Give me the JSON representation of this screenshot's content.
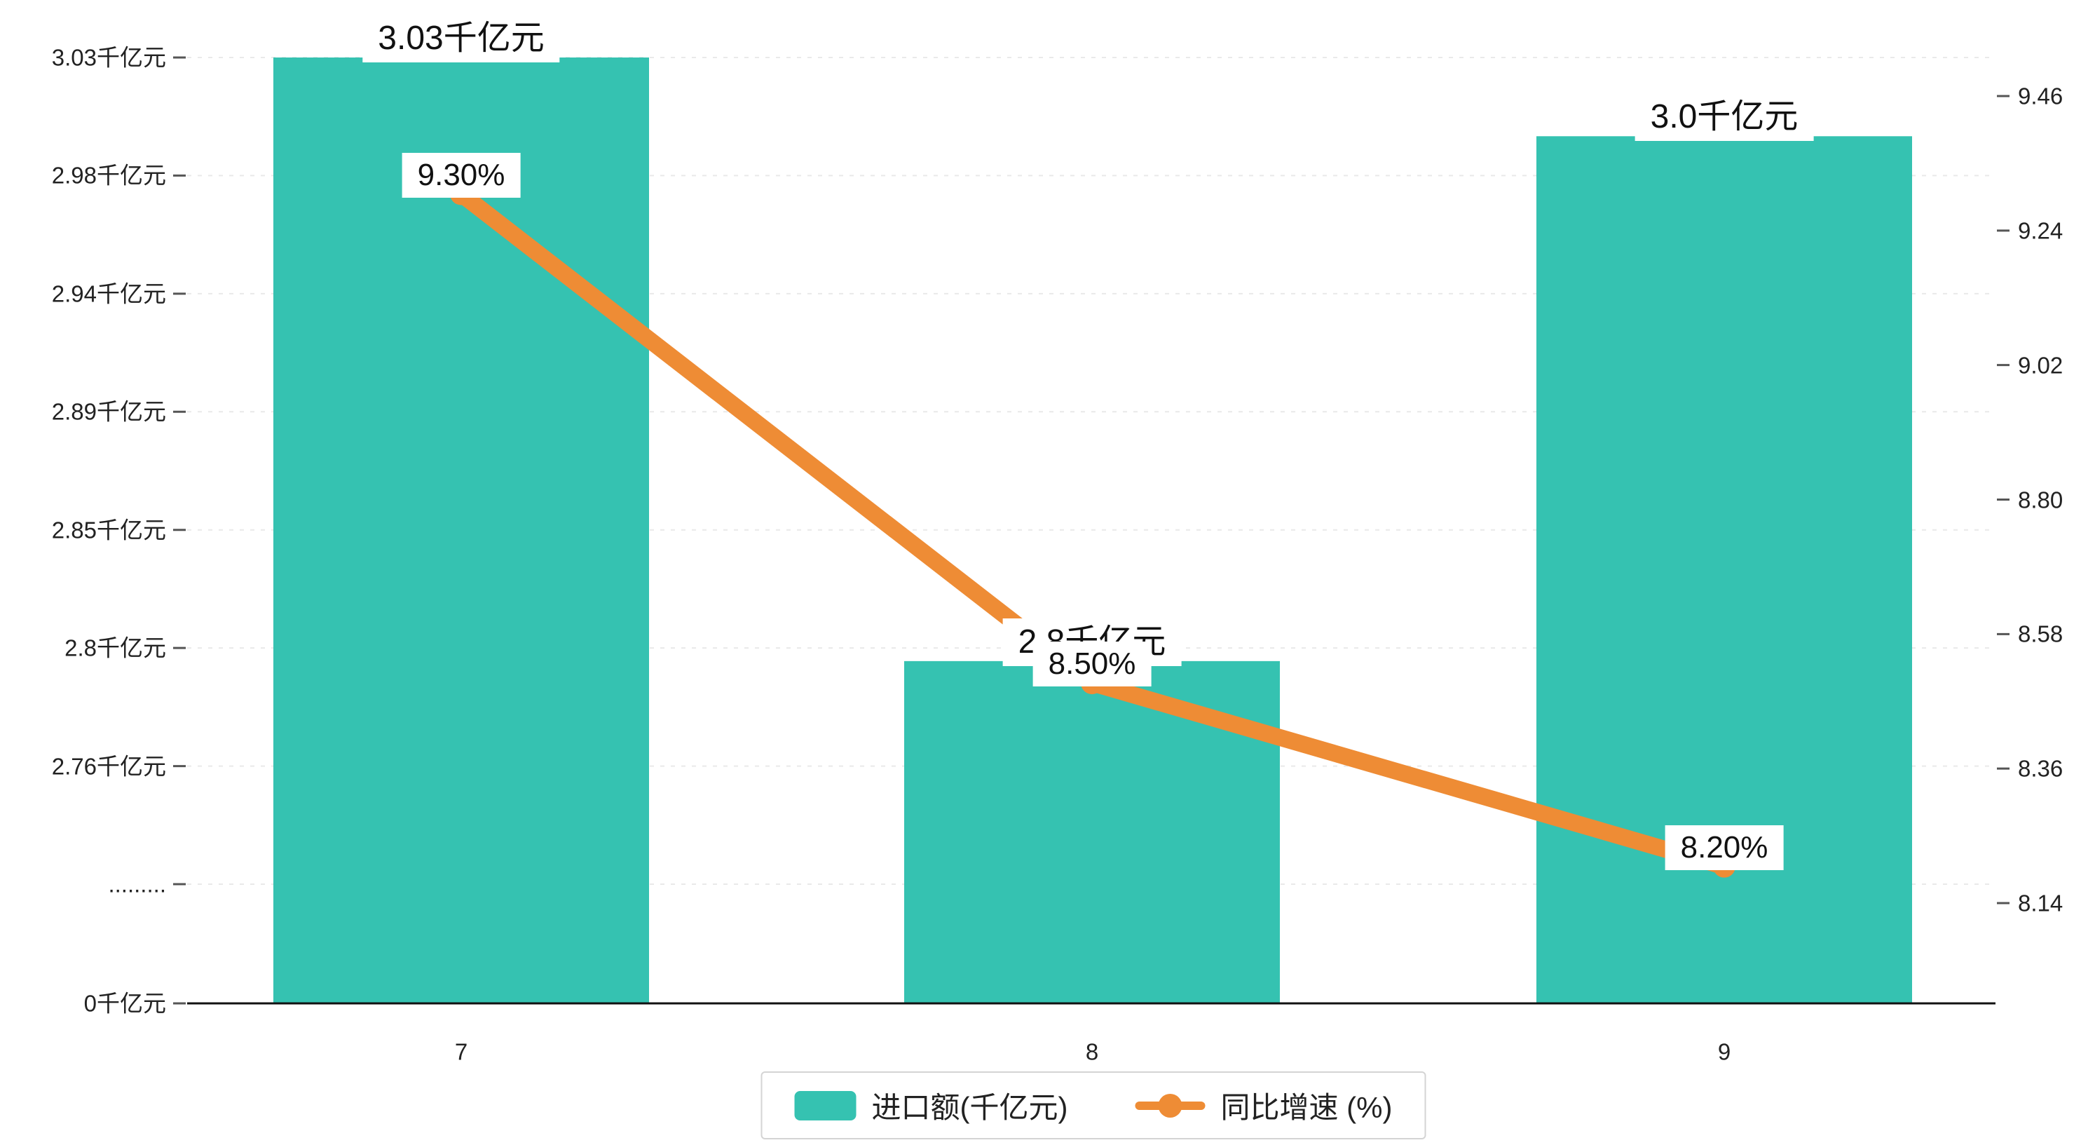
{
  "chart_data": {
    "type": "combo",
    "categories": [
      "7",
      "8",
      "9"
    ],
    "series": [
      {
        "name": "进口额(千亿元)",
        "type": "bar",
        "axis": "left",
        "color": "#35c2b1",
        "values": [
          3.03,
          2.8,
          3.0
        ],
        "labels": [
          "3.03千亿元",
          "2.8千亿元",
          "3.0千亿元"
        ]
      },
      {
        "name": "同比增速 (%)",
        "type": "line",
        "axis": "right",
        "color": "#ee8c35",
        "values": [
          9.3,
          8.5,
          8.2
        ],
        "labels": [
          "9.30%",
          "8.50%",
          "8.20%"
        ]
      }
    ],
    "left_axis": {
      "title": "",
      "broken": true,
      "ticks": [
        {
          "label": "3.03千亿元",
          "value": 3.03
        },
        {
          "label": "2.98千亿元",
          "value": 2.985
        },
        {
          "label": "2.94千亿元",
          "value": 2.94
        },
        {
          "label": "2.89千亿元",
          "value": 2.895
        },
        {
          "label": "2.85千亿元",
          "value": 2.85
        },
        {
          "label": "2.8千亿元",
          "value": 2.805
        },
        {
          "label": "2.76千亿元",
          "value": 2.76
        },
        {
          "label": ".........",
          "value": 2.715,
          "break": true
        },
        {
          "label": "0千亿元",
          "value": 0
        }
      ]
    },
    "right_axis": {
      "title": "",
      "ticks": [
        {
          "label": "9.46",
          "value": 9.46
        },
        {
          "label": "9.24",
          "value": 9.24
        },
        {
          "label": "9.02",
          "value": 9.02
        },
        {
          "label": "8.80",
          "value": 8.8
        },
        {
          "label": "8.58",
          "value": 8.58
        },
        {
          "label": "8.36",
          "value": 8.36
        },
        {
          "label": "8.14",
          "value": 8.14
        }
      ]
    },
    "grid": true,
    "legend_position": "bottom"
  },
  "legend": {
    "items": [
      {
        "label": "进口额(千亿元)",
        "marker": "bar-swatch"
      },
      {
        "label": "同比增速 (%)",
        "marker": "line-dot-swatch"
      }
    ]
  },
  "colors": {
    "bar": "#35c2b1",
    "line": "#ee8c35",
    "grid": "#e9e9e9",
    "axis": "#111111",
    "label_bg": "#ffffff"
  }
}
